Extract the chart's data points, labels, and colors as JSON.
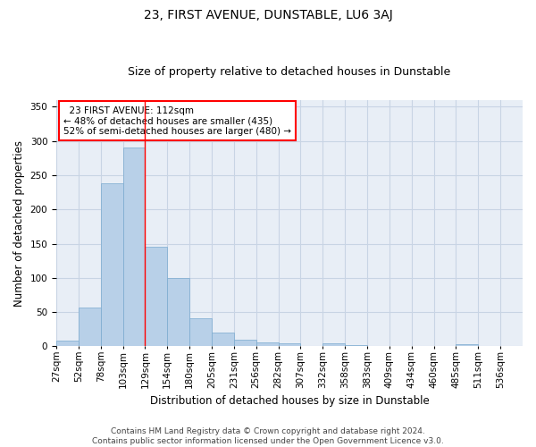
{
  "title": "23, FIRST AVENUE, DUNSTABLE, LU6 3AJ",
  "subtitle": "Size of property relative to detached houses in Dunstable",
  "xlabel": "Distribution of detached houses by size in Dunstable",
  "ylabel": "Number of detached properties",
  "bar_values": [
    8,
    57,
    238,
    291,
    145,
    100,
    41,
    20,
    10,
    6,
    4,
    0,
    4,
    2,
    0,
    0,
    0,
    0,
    3,
    0,
    0
  ],
  "tick_labels": [
    "27sqm",
    "52sqm",
    "78sqm",
    "103sqm",
    "129sqm",
    "154sqm",
    "180sqm",
    "205sqm",
    "231sqm",
    "256sqm",
    "282sqm",
    "307sqm",
    "332sqm",
    "358sqm",
    "383sqm",
    "409sqm",
    "434sqm",
    "460sqm",
    "485sqm",
    "511sqm",
    "536sqm"
  ],
  "bar_color": "#b8d0e8",
  "bar_edge_color": "#7aaacf",
  "grid_color": "#c8d4e4",
  "background_color": "#e8eef6",
  "annotation_text": "  23 FIRST AVENUE: 112sqm\n← 48% of detached houses are smaller (435)\n52% of semi-detached houses are larger (480) →",
  "annotation_box_color": "white",
  "annotation_box_edge": "red",
  "red_line_bin_edge": 3,
  "ylim": [
    0,
    360
  ],
  "yticks": [
    0,
    50,
    100,
    150,
    200,
    250,
    300,
    350
  ],
  "footnote_line1": "Contains HM Land Registry data © Crown copyright and database right 2024.",
  "footnote_line2": "Contains public sector information licensed under the Open Government Licence v3.0.",
  "title_fontsize": 10,
  "subtitle_fontsize": 9,
  "xlabel_fontsize": 8.5,
  "ylabel_fontsize": 8.5,
  "tick_fontsize": 7.5,
  "annot_fontsize": 7.5,
  "footnote_fontsize": 6.5
}
